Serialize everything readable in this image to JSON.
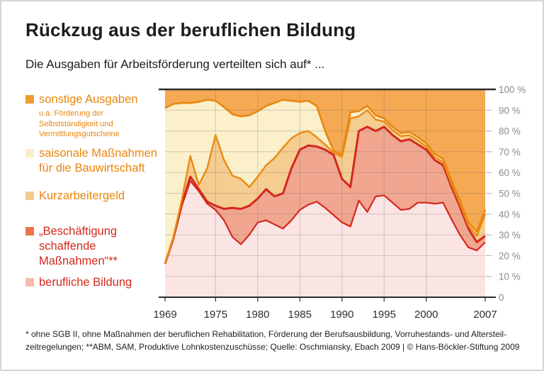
{
  "header": {
    "title": "Rückzug aus der beruflichen Bildung",
    "subtitle": "Die Ausgaben für Arbeitsförderung verteilten sich auf* ..."
  },
  "legend": {
    "items": [
      {
        "label": "sonstige Ausgaben",
        "note": "u.a. Förderung der\nSelbstständigkeit und\nVermittlungsgutscheine",
        "swatch_color": "#EF9D33",
        "text_color": "#E8860F"
      },
      {
        "label": "saisonale Maßnahmen\nfür die Bauwirtschaft",
        "swatch_color": "#FBEFC5",
        "text_color": "#E8860F"
      },
      {
        "label": "Kurzarbeitergeld",
        "swatch_color": "#F5C98B",
        "text_color": "#E8860F"
      },
      {
        "label": "„Beschäftigung\nschaffende\nMaßnahmen“**",
        "swatch_color": "#E87549",
        "text_color": "#D3281F"
      },
      {
        "label": "berufliche Bildung",
        "swatch_color": "#F4BCB0",
        "text_color": "#D3281F"
      }
    ]
  },
  "chart_data": {
    "type": "area",
    "stacked": true,
    "unit": "%",
    "ylim": [
      0,
      100
    ],
    "grid": true,
    "legend_position": "left",
    "x": [
      1969,
      1970,
      1971,
      1972,
      1973,
      1974,
      1975,
      1976,
      1977,
      1978,
      1979,
      1980,
      1981,
      1982,
      1983,
      1984,
      1985,
      1986,
      1987,
      1988,
      1989,
      1990,
      1991,
      1992,
      1993,
      1994,
      1995,
      1996,
      1997,
      1998,
      1999,
      2000,
      2001,
      2002,
      2003,
      2004,
      2005,
      2006,
      2007
    ],
    "x_tick_years": [
      1969,
      1975,
      1980,
      1985,
      1990,
      1995,
      2000,
      2007
    ],
    "y_ticks": [
      {
        "value": 100,
        "label": "100 %"
      },
      {
        "value": 90,
        "label": "90 %"
      },
      {
        "value": 80,
        "label": "80 %"
      },
      {
        "value": 70,
        "label": "70 %"
      },
      {
        "value": 60,
        "label": "60 %"
      },
      {
        "value": 50,
        "label": "50 %"
      },
      {
        "value": 40,
        "label": "40 %"
      },
      {
        "value": 30,
        "label": "30 %"
      },
      {
        "value": 20,
        "label": "20 %"
      },
      {
        "value": 10,
        "label": "10 %"
      },
      {
        "value": 0,
        "label": "0"
      }
    ],
    "series": [
      {
        "key": "berufliche-bildung",
        "name": "berufliche Bildung",
        "fill": "#FBE5E4",
        "line_color": "#D3281F",
        "line_width": 2.2,
        "values": [
          16,
          28,
          44,
          56,
          51,
          45,
          42,
          37,
          29,
          25.5,
          30,
          36,
          37,
          35,
          33,
          37,
          42,
          44.5,
          46,
          43,
          39.5,
          36,
          34,
          46.5,
          41,
          48.5,
          49,
          45.5,
          42,
          42.5,
          45.5,
          45.5,
          45,
          45.5,
          37.5,
          30,
          24,
          22.5,
          26.5
        ]
      },
      {
        "key": "beschaeftigung-schaffende-massnahmen",
        "name": "„Beschäftigung schaffende Maßnahmen“**",
        "fill": "#F1A68F",
        "line_color": "#D3281F",
        "line_width": 3,
        "values": [
          0,
          0.5,
          1,
          2,
          1,
          1,
          2,
          5.5,
          14,
          17,
          14,
          11.5,
          15,
          13.5,
          17,
          25,
          29,
          28.5,
          26.5,
          28,
          29,
          21,
          19,
          33.5,
          41,
          31.5,
          33,
          32.5,
          33,
          33.5,
          28,
          25.5,
          21,
          18,
          15.5,
          13.5,
          9,
          4,
          3
        ]
      },
      {
        "key": "kurzarbeitergeld",
        "name": "Kurzarbeitergeld",
        "fill": "#F6CD90",
        "line_color": "#E98A14",
        "line_width": 2.4,
        "values": [
          0,
          0.5,
          2,
          10,
          2,
          16,
          34,
          23.5,
          15.5,
          14.5,
          9,
          10.5,
          11.5,
          18.5,
          22,
          14.5,
          8,
          7,
          4.5,
          2.5,
          1,
          10.5,
          33,
          7,
          8,
          5.5,
          2.5,
          2.5,
          2.5,
          2,
          2,
          1.5,
          1.5,
          1.5,
          1.5,
          1.5,
          1.5,
          3,
          10.5
        ]
      },
      {
        "key": "saisonale-massnahmen",
        "name": "saisonale Maßnahmen für die Bauwirtschaft",
        "fill": "#FBF0CA",
        "line_color": "#E8860F",
        "line_width": 2.6,
        "values": [
          75,
          64,
          46.5,
          25.5,
          40,
          33,
          16.5,
          25.5,
          29.5,
          30,
          34.5,
          31.5,
          28.5,
          26.5,
          23,
          18,
          15,
          14.5,
          15,
          6.5,
          1,
          1,
          3,
          2.5,
          2,
          2,
          1.5,
          1.5,
          1.5,
          1.5,
          1.5,
          1.5,
          1.5,
          1.5,
          1.5,
          1.5,
          1.5,
          2,
          2
        ]
      },
      {
        "key": "sonstige-ausgaben",
        "name": "sonstige Ausgaben",
        "fill": "#F5A952",
        "line_color": null,
        "line_width": 0,
        "values": [
          9,
          7,
          6.5,
          6.5,
          6,
          5,
          5.5,
          8.5,
          12,
          13,
          12.5,
          10.5,
          8,
          6.5,
          5,
          5.5,
          6,
          5.5,
          8,
          20,
          29.5,
          31.5,
          11,
          10.5,
          8,
          12.5,
          14,
          18,
          21,
          20.5,
          23,
          26,
          31,
          33.5,
          44,
          53.5,
          64,
          68.5,
          58
        ]
      }
    ]
  },
  "footer": {
    "note": "* ohne SGB II, ohne Maßnahmen der beruflichen Rehabilitation, Förderung der Berufsausbildung, Vorruhestands- und Altersteil-\nzeitregelungen; **ABM, SAM, Produktive Lohnkostenzuschüsse; Quelle: Oschmiansky, Ebach 2009 | © Hans-Böckler-Stiftung 2009"
  },
  "style": {
    "grid_color": "rgba(110,110,110,0.30)",
    "axis_color": "#2d2d2d",
    "y_label_color": "#8b8b8b",
    "x_label_color": "#2e2e2e",
    "side_tick_color": "#b5b5b5"
  }
}
